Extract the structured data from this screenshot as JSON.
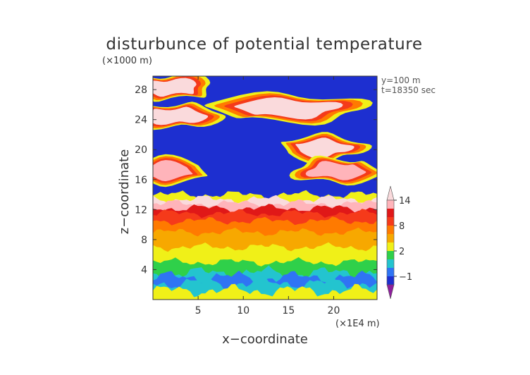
{
  "chart_data": {
    "type": "heatmap",
    "title": "disturbunce of potential temperature",
    "y_unit_label": "(×1000 m)",
    "x_unit_label": "(×1E4 m)",
    "xlabel": "x−coordinate",
    "ylabel": "z−coordinate",
    "annotations": [
      "y=100 m",
      "t=18350 sec"
    ],
    "xlim": [
      0,
      24.8
    ],
    "ylim": [
      0,
      29.8
    ],
    "x_ticks": [
      5,
      10,
      15,
      20
    ],
    "y_ticks": [
      4,
      8,
      12,
      16,
      20,
      24,
      28
    ],
    "colorbar": {
      "levels": [
        -2,
        -1,
        0,
        1,
        2,
        4,
        6,
        8,
        10,
        12,
        14
      ],
      "tick_labels": [
        "−1",
        "2",
        "8",
        "14"
      ],
      "tick_values": [
        -1,
        2,
        8,
        14
      ],
      "colors": [
        "#8e1f9c",
        "#1d2fd0",
        "#2f74f4",
        "#23c4cf",
        "#2fd04a",
        "#f0f018",
        "#f7a800",
        "#ff7a00",
        "#f53a1a",
        "#e01818",
        "#ffb4ba",
        "#fadadc"
      ]
    },
    "profile": {
      "z": [
        0.3,
        1.2,
        2.2,
        3,
        3.6,
        5,
        7,
        9,
        10.5,
        11.5,
        12.2,
        12.8,
        13.4,
        14,
        28
      ],
      "levels": [
        2,
        0,
        -1,
        0,
        1,
        2,
        4,
        6,
        8,
        10,
        12,
        14,
        2,
        -2,
        -2
      ]
    },
    "warm_blobs": [
      {
        "x": 15,
        "z": 25.5,
        "level": 14
      },
      {
        "x": 18.7,
        "z": 20.2,
        "level": 14
      },
      {
        "x": 2.5,
        "z": 24.5,
        "level": 14
      },
      {
        "x": 20.2,
        "z": 17.2,
        "level": 12
      },
      {
        "x": 1.4,
        "z": 17.2,
        "level": 12
      },
      {
        "x": 2,
        "z": 28.3,
        "level": 14
      }
    ]
  }
}
